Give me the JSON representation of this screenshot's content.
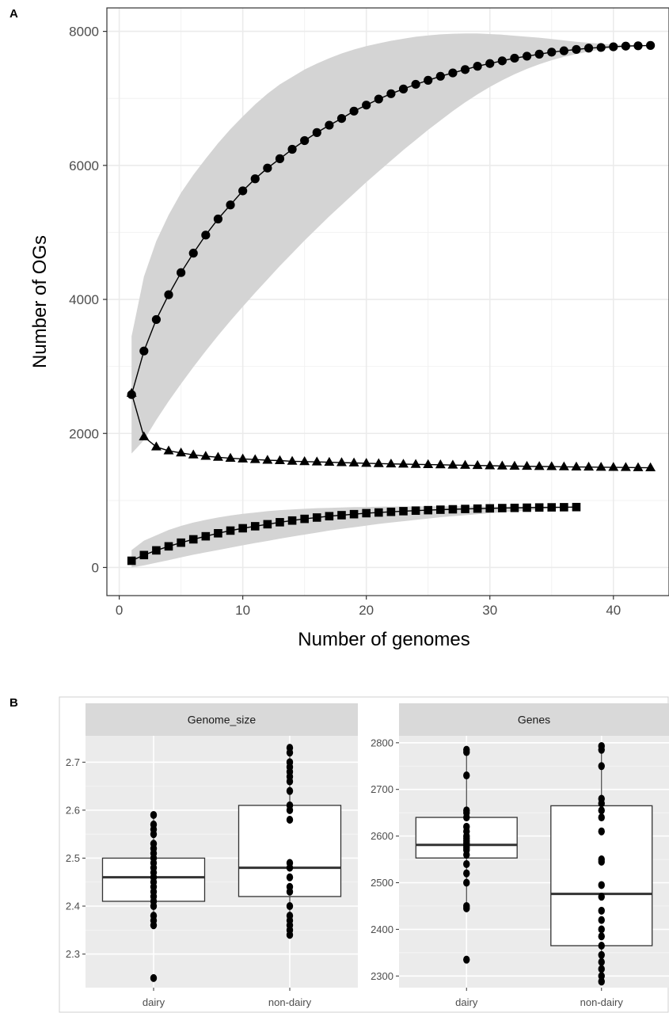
{
  "chart_data": [
    {
      "panel": "A",
      "type": "line",
      "xlabel": "Number of genomes",
      "ylabel": "Number of OGs",
      "xlim": [
        -1,
        44.5
      ],
      "ylim": [
        -420,
        8350
      ],
      "xticks": [
        0,
        10,
        20,
        30,
        40
      ],
      "yticks": [
        0,
        2000,
        4000,
        6000,
        8000
      ],
      "grid": true,
      "series": [
        {
          "marker": "circle",
          "x": [
            1,
            2,
            3,
            4,
            5,
            6,
            7,
            8,
            9,
            10,
            11,
            12,
            13,
            14,
            15,
            16,
            17,
            18,
            19,
            20,
            21,
            22,
            23,
            24,
            25,
            26,
            27,
            28,
            29,
            30,
            31,
            32,
            33,
            34,
            35,
            36,
            37,
            38,
            39,
            40,
            41,
            42,
            43
          ],
          "values": [
            2580,
            3230,
            3700,
            4070,
            4400,
            4690,
            4960,
            5200,
            5410,
            5620,
            5800,
            5960,
            6100,
            6240,
            6370,
            6490,
            6600,
            6700,
            6810,
            6900,
            6990,
            7070,
            7140,
            7210,
            7270,
            7330,
            7380,
            7430,
            7480,
            7520,
            7560,
            7600,
            7630,
            7660,
            7690,
            7710,
            7730,
            7750,
            7760,
            7770,
            7780,
            7785,
            7790
          ],
          "band_upper": [
            3450,
            4340,
            4870,
            5260,
            5590,
            5860,
            6100,
            6330,
            6540,
            6730,
            6910,
            7070,
            7210,
            7320,
            7430,
            7520,
            7600,
            7670,
            7730,
            7780,
            7820,
            7860,
            7890,
            7920,
            7940,
            7955,
            7965,
            7970,
            7970,
            7960,
            7950,
            7935,
            7920,
            7905,
            7885,
            7865,
            7845,
            7830,
            7815,
            7805,
            7800,
            7795,
            7790
          ],
          "band_lower": [
            1700,
            1900,
            2200,
            2480,
            2740,
            2990,
            3230,
            3460,
            3680,
            3890,
            4100,
            4300,
            4500,
            4690,
            4880,
            5060,
            5240,
            5410,
            5580,
            5750,
            5910,
            6070,
            6230,
            6380,
            6530,
            6670,
            6810,
            6940,
            7060,
            7170,
            7270,
            7360,
            7440,
            7510,
            7570,
            7620,
            7660,
            7700,
            7730,
            7750,
            7770,
            7780,
            7790
          ]
        },
        {
          "marker": "triangle",
          "x": [
            1,
            2,
            3,
            4,
            5,
            6,
            7,
            8,
            9,
            10,
            11,
            12,
            13,
            14,
            15,
            16,
            17,
            18,
            19,
            20,
            21,
            22,
            23,
            24,
            25,
            26,
            27,
            28,
            29,
            30,
            31,
            32,
            33,
            34,
            35,
            36,
            37,
            38,
            39,
            40,
            41,
            42,
            43
          ],
          "values": [
            2600,
            1950,
            1800,
            1740,
            1710,
            1680,
            1660,
            1645,
            1630,
            1620,
            1610,
            1600,
            1595,
            1585,
            1580,
            1575,
            1570,
            1565,
            1560,
            1555,
            1550,
            1545,
            1542,
            1538,
            1535,
            1532,
            1528,
            1525,
            1522,
            1518,
            1515,
            1512,
            1510,
            1507,
            1505,
            1502,
            1500,
            1498,
            1496,
            1494,
            1492,
            1490,
            1488
          ]
        },
        {
          "marker": "square",
          "x": [
            1,
            2,
            3,
            4,
            5,
            6,
            7,
            8,
            9,
            10,
            11,
            12,
            13,
            14,
            15,
            16,
            17,
            18,
            19,
            20,
            21,
            22,
            23,
            24,
            25,
            26,
            27,
            28,
            29,
            30,
            31,
            32,
            33,
            34,
            35,
            36,
            37
          ],
          "values": [
            100,
            185,
            255,
            315,
            370,
            420,
            465,
            510,
            550,
            585,
            615,
            645,
            675,
            700,
            725,
            745,
            765,
            780,
            795,
            810,
            820,
            830,
            840,
            848,
            855,
            862,
            868,
            873,
            878,
            882,
            886,
            889,
            892,
            895,
            897,
            899,
            901
          ],
          "band_upper": [
            260,
            400,
            480,
            560,
            620,
            670,
            710,
            745,
            775,
            800,
            820,
            840,
            855,
            865,
            875,
            885,
            890,
            895,
            900,
            903,
            906,
            908,
            910,
            911,
            912,
            912,
            912,
            912,
            911,
            910,
            909,
            908,
            907,
            906,
            905,
            904,
            903
          ],
          "band_lower": [
            0,
            30,
            70,
            110,
            150,
            190,
            225,
            260,
            295,
            330,
            365,
            395,
            430,
            460,
            490,
            520,
            550,
            575,
            600,
            625,
            650,
            670,
            690,
            710,
            730,
            750,
            765,
            780,
            795,
            810,
            825,
            838,
            850,
            862,
            875,
            888,
            900
          ]
        }
      ]
    },
    {
      "panel": "B",
      "type": "box",
      "facets": [
        {
          "strip": "Genome_size",
          "categories": [
            "dairy",
            "non-dairy"
          ],
          "ylim": [
            2.23,
            2.755
          ],
          "yticks": [
            2.3,
            2.4,
            2.5,
            2.6,
            2.7
          ],
          "ytick_labels": [
            "2.3",
            "2.4",
            "2.5",
            "2.6",
            "2.7"
          ],
          "boxes": [
            {
              "q1": 2.41,
              "median": 2.46,
              "q3": 2.5,
              "whisker_low": 2.36,
              "whisker_high": 2.59,
              "points": [
                2.25,
                2.36,
                2.37,
                2.38,
                2.4,
                2.41,
                2.42,
                2.43,
                2.44,
                2.45,
                2.46,
                2.46,
                2.47,
                2.48,
                2.49,
                2.5,
                2.51,
                2.52,
                2.53,
                2.55,
                2.56,
                2.57,
                2.59
              ]
            },
            {
              "q1": 2.42,
              "median": 2.48,
              "q3": 2.61,
              "whisker_low": 2.34,
              "whisker_high": 2.73,
              "points": [
                2.34,
                2.35,
                2.36,
                2.37,
                2.38,
                2.4,
                2.43,
                2.44,
                2.46,
                2.48,
                2.49,
                2.58,
                2.6,
                2.61,
                2.64,
                2.66,
                2.67,
                2.68,
                2.69,
                2.7,
                2.72,
                2.73
              ]
            }
          ]
        },
        {
          "strip": "Genes",
          "categories": [
            "dairy",
            "non-dairy"
          ],
          "ylim": [
            2275,
            2815
          ],
          "yticks": [
            2300,
            2400,
            2500,
            2600,
            2700,
            2800
          ],
          "ytick_labels": [
            "2300",
            "2400",
            "2500",
            "2600",
            "2700",
            "2800"
          ],
          "boxes": [
            {
              "q1": 2553,
              "median": 2581,
              "q3": 2640,
              "whisker_low": 2445,
              "whisker_high": 2785,
              "points": [
                2335,
                2445,
                2450,
                2500,
                2520,
                2540,
                2560,
                2570,
                2575,
                2580,
                2585,
                2590,
                2595,
                2600,
                2610,
                2620,
                2640,
                2650,
                2655,
                2730,
                2780,
                2785
              ]
            },
            {
              "q1": 2365,
              "median": 2476,
              "q3": 2665,
              "whisker_low": 2288,
              "whisker_high": 2793,
              "points": [
                2288,
                2300,
                2315,
                2330,
                2345,
                2365,
                2385,
                2400,
                2420,
                2440,
                2470,
                2495,
                2545,
                2550,
                2610,
                2640,
                2655,
                2670,
                2680,
                2750,
                2785,
                2793
              ]
            }
          ]
        }
      ]
    }
  ],
  "panel_labels": {
    "a": "A",
    "b": "B"
  },
  "colors": {
    "band": "#d4d4d4",
    "grid_minor": "#f2f2f2",
    "grid_major": "#ebebeb",
    "panel_b_bg": "#ebebeb",
    "strip": "#d9d9d9"
  }
}
